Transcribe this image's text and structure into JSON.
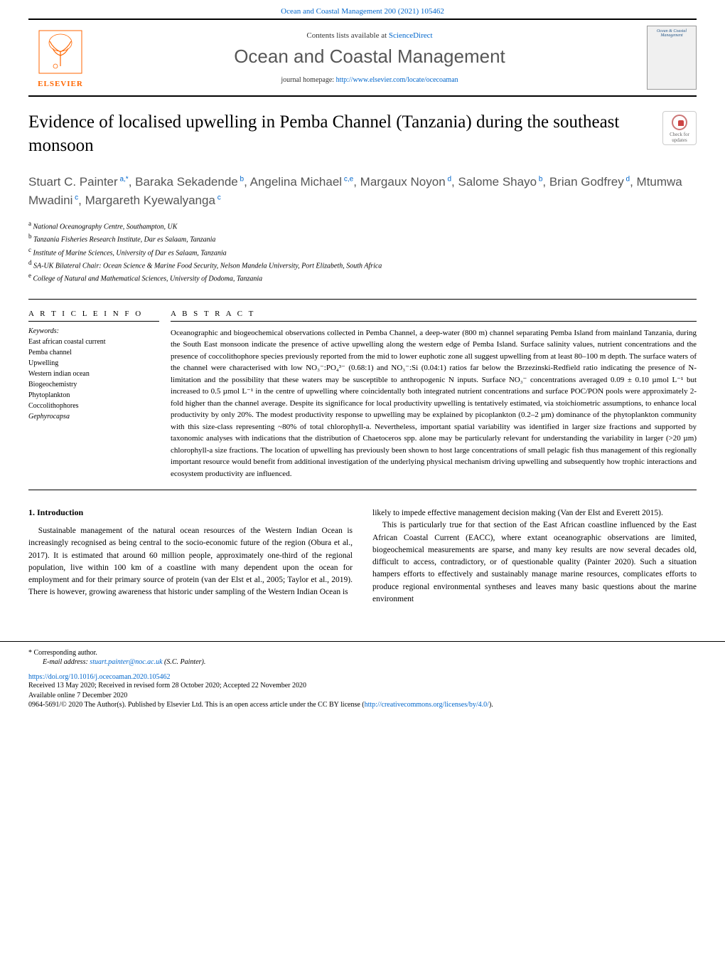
{
  "top_link": "Ocean and Coastal Management 200 (2021) 105462",
  "header": {
    "contents_prefix": "Contents lists available at ",
    "contents_link": "ScienceDirect",
    "journal": "Ocean and Coastal Management",
    "homepage_prefix": "journal homepage: ",
    "homepage_url": "http://www.elsevier.com/locate/ocecoaman",
    "elsevier": "ELSEVIER",
    "cover_title": "Ocean & Coastal Management"
  },
  "check_updates": "Check for updates",
  "title": "Evidence of localised upwelling in Pemba Channel (Tanzania) during the southeast monsoon",
  "authors_html": "Stuart C. Painter",
  "authors": [
    {
      "name": "Stuart C. Painter",
      "sup": "a,*"
    },
    {
      "name": "Baraka Sekadende",
      "sup": "b"
    },
    {
      "name": "Angelina Michael",
      "sup": "c,e"
    },
    {
      "name": "Margaux Noyon",
      "sup": "d"
    },
    {
      "name": "Salome Shayo",
      "sup": "b"
    },
    {
      "name": "Brian Godfrey",
      "sup": "d"
    },
    {
      "name": "Mtumwa Mwadini",
      "sup": "c"
    },
    {
      "name": "Margareth Kyewalyanga",
      "sup": "c"
    }
  ],
  "affiliations": [
    {
      "sup": "a",
      "text": "National Oceanography Centre, Southampton, UK"
    },
    {
      "sup": "b",
      "text": "Tanzania Fisheries Research Institute, Dar es Salaam, Tanzania"
    },
    {
      "sup": "c",
      "text": "Institute of Marine Sciences, University of Dar es Salaam, Tanzania"
    },
    {
      "sup": "d",
      "text": "SA-UK Bilateral Chair: Ocean Science & Marine Food Security, Nelson Mandela University, Port Elizabeth, South Africa"
    },
    {
      "sup": "e",
      "text": "College of Natural and Mathematical Sciences, University of Dodoma, Tanzania"
    }
  ],
  "info": {
    "heading": "A R T I C L E  I N F O",
    "keywords_label": "Keywords:",
    "keywords": [
      "East african coastal current",
      "Pemba channel",
      "Upwelling",
      "Western indian ocean",
      "Biogeochemistry",
      "Phytoplankton",
      "Coccolithophores",
      "Gephyrocapsa"
    ]
  },
  "abstract": {
    "heading": "A B S T R A C T",
    "text": "Oceanographic and biogeochemical observations collected in Pemba Channel, a deep-water (800 m) channel separating Pemba Island from mainland Tanzania, during the South East monsoon indicate the presence of active upwelling along the western edge of Pemba Island. Surface salinity values, nutrient concentrations and the presence of coccolithophore species previously reported from the mid to lower euphotic zone all suggest upwelling from at least 80–100 m depth. The surface waters of the channel were characterised with low NO₃⁻:PO₄³⁻ (0.68:1) and NO₃⁻:Si (0.04:1) ratios far below the Brzezinski-Redfield ratio indicating the presence of N-limitation and the possibility that these waters may be susceptible to anthropogenic N inputs. Surface NO₃⁻ concentrations averaged 0.09 ± 0.10 µmol L⁻¹ but increased to 0.5 µmol L⁻¹ in the centre of upwelling where coincidentally both integrated nutrient concentrations and surface POC/PON pools were approximately 2-fold higher than the channel average. Despite its significance for local productivity upwelling is tentatively estimated, via stoichiometric assumptions, to enhance local productivity by only 20%. The modest productivity response to upwelling may be explained by picoplankton (0.2–2 µm) dominance of the phytoplankton community with this size-class representing ~80% of total chlorophyll-a. Nevertheless, important spatial variability was identified in larger size fractions and supported by taxonomic analyses with indications that the distribution of Chaetoceros spp. alone may be particularly relevant for understanding the variability in larger (>20 µm) chlorophyll-a size fractions. The location of upwelling has previously been shown to host large concentrations of small pelagic fish thus management of this regionally important resource would benefit from additional investigation of the underlying physical mechanism driving upwelling and subsequently how trophic interactions and ecosystem productivity are influenced."
  },
  "intro": {
    "heading": "1. Introduction",
    "col1_p1": "Sustainable management of the natural ocean resources of the Western Indian Ocean is increasingly recognised as being central to the socio-economic future of the region (Obura et al., 2017). It is estimated that around 60 million people, approximately one-third of the regional population, live within 100 km of a coastline with many dependent upon the ocean for employment and for their primary source of protein (van der Elst et al., 2005; Taylor et al., 2019). There is however, growing awareness that historic under sampling of the Western Indian Ocean is",
    "col2_p1": "likely to impede effective management decision making (Van der Elst and Everett 2015).",
    "col2_p2": "This is particularly true for that section of the East African coastline influenced by the East African Coastal Current (EACC), where extant oceanographic observations are limited, biogeochemical measurements are sparse, and many key results are now several decades old, difficult to access, contradictory, or of questionable quality (Painter 2020). Such a situation hampers efforts to effectively and sustainably manage marine resources, complicates efforts to produce regional environmental syntheses and leaves many basic questions about the marine environment"
  },
  "footer": {
    "corr": "* Corresponding author.",
    "email_label": "E-mail address: ",
    "email": "stuart.painter@noc.ac.uk",
    "email_suffix": " (S.C. Painter).",
    "doi": "https://doi.org/10.1016/j.ocecoaman.2020.105462",
    "history": "Received 13 May 2020; Received in revised form 28 October 2020; Accepted 22 November 2020",
    "available": "Available online 7 December 2020",
    "license_prefix": "0964-5691/© 2020 The Author(s). Published by Elsevier Ltd. This is an open access article under the CC BY license (",
    "license_url": "http://creativecommons.org/licenses/by/4.0/",
    "license_suffix": ")."
  },
  "colors": {
    "link": "#0066cc",
    "elsevier_orange": "#ff6600",
    "heading_gray": "#565656"
  }
}
